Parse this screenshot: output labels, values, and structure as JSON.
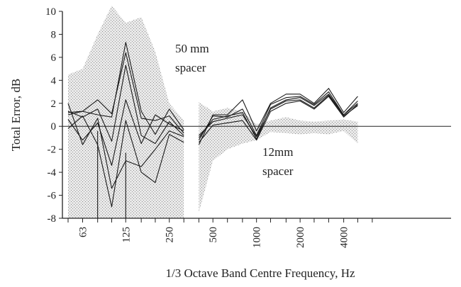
{
  "chart_data": {
    "type": "line",
    "xlabel": "1/3 Octave Band Centre Frequency, Hz",
    "ylabel": "Total Error, dB",
    "ylim": [
      -8,
      10
    ],
    "yticks": [
      10,
      8,
      6,
      4,
      2,
      0,
      -2,
      -4,
      -6,
      -8
    ],
    "xticks": [
      "63",
      "125",
      "250",
      "500",
      "1000",
      "2000",
      "4000"
    ],
    "grid": false,
    "annotations": [
      "50 mm",
      "spacer",
      "12mm",
      "spacer"
    ],
    "groups": [
      {
        "label": "50 mm spacer",
        "x": [
          50,
          63,
          80,
          100,
          125,
          160,
          200,
          250,
          315
        ],
        "band_upper": [
          4.5,
          5.0,
          8.0,
          10.5,
          9.0,
          9.5,
          6.5,
          2.0,
          0.5
        ],
        "band_lower": [
          -8,
          -8,
          -8,
          -8,
          -8,
          -8,
          -8,
          -8,
          -8
        ],
        "series": [
          {
            "values": [
              1.0,
              1.3,
              1.0,
              0.8,
              7.3,
              1.3,
              -0.7,
              1.5,
              -0.3
            ]
          },
          {
            "values": [
              1.2,
              1.3,
              2.3,
              1.1,
              6.4,
              0.7,
              0.5,
              0.9,
              -0.6
            ]
          },
          {
            "values": [
              1.3,
              0.8,
              1.5,
              -1.3,
              5.3,
              -0.8,
              -1.5,
              0.4,
              -0.8
            ]
          },
          {
            "values": [
              0.6,
              -1.2,
              0.3,
              -3.4,
              2.3,
              -1.5,
              1.0,
              0.2,
              -0.4
            ]
          },
          {
            "values": [
              2.0,
              -1.6,
              0.7,
              -5.4,
              -3.0,
              -3.5,
              -2.0,
              -0.4,
              -0.9
            ]
          },
          {
            "values": [
              -0.2,
              0.9,
              -1.6,
              -7.0,
              0.5,
              -4.0,
              -4.9,
              -0.7,
              -1.4
            ]
          }
        ]
      },
      {
        "label": "12mm spacer",
        "x": [
          400,
          500,
          630,
          800,
          1000,
          1250,
          1600,
          2000,
          2500,
          3150,
          4000,
          5000
        ],
        "band_upper": [
          2.1,
          1.3,
          1.6,
          1.3,
          0.2,
          0.5,
          0.8,
          0.5,
          0.4,
          0.5,
          0.6,
          0.4
        ],
        "band_lower": [
          -7.5,
          -3.0,
          -2.0,
          -1.5,
          -1.2,
          -0.5,
          -0.6,
          -0.7,
          -0.6,
          -0.7,
          -0.4,
          -1.5
        ],
        "series": [
          {
            "values": [
              -1.6,
              1.0,
              1.0,
              2.3,
              -0.4,
              2.0,
              2.8,
              2.8,
              2.0,
              3.3,
              1.2,
              2.6
            ]
          },
          {
            "values": [
              -1.2,
              0.9,
              0.8,
              1.5,
              -0.8,
              1.9,
              2.5,
              2.6,
              1.9,
              3.0,
              1.0,
              2.2
            ]
          },
          {
            "values": [
              -1.0,
              0.6,
              0.9,
              1.2,
              -1.1,
              1.6,
              2.3,
              2.5,
              1.8,
              2.8,
              1.0,
              2.0
            ]
          },
          {
            "values": [
              -0.8,
              0.4,
              0.7,
              1.0,
              -0.9,
              1.5,
              2.2,
              2.3,
              1.6,
              2.7,
              0.9,
              1.8
            ]
          },
          {
            "values": [
              -1.4,
              0.1,
              0.3,
              0.5,
              -1.2,
              1.3,
              2.0,
              2.2,
              1.5,
              2.6,
              0.8,
              1.9
            ]
          }
        ]
      }
    ],
    "drop_lines": [
      {
        "x": 80,
        "from": -0.4,
        "to": -8
      },
      {
        "x": 125,
        "from": -2.3,
        "to": -8
      }
    ]
  }
}
